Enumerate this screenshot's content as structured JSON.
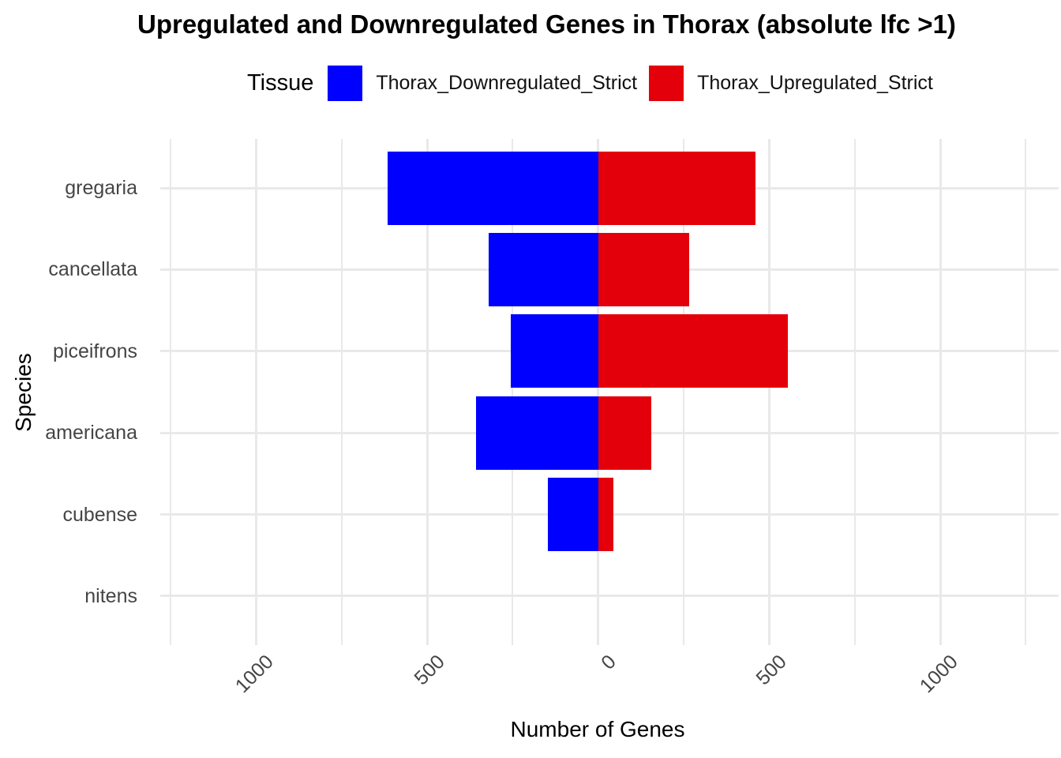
{
  "title": "Upregulated and Downregulated Genes in Thorax (absolute lfc >1)",
  "legend": {
    "title": "Tissue",
    "items": [
      {
        "label": "Thorax_Downregulated_Strict",
        "color": "#0000FF"
      },
      {
        "label": "Thorax_Upregulated_Strict",
        "color": "#E4000B"
      }
    ]
  },
  "chart_data": {
    "type": "bar",
    "orientation": "horizontal-diverging",
    "title": "Upregulated and Downregulated Genes in Thorax (absolute lfc >1)",
    "xlabel": "Number of Genes",
    "ylabel": "Species",
    "categories": [
      "gregaria",
      "cancellata",
      "piceifrons",
      "americana",
      "cubense",
      "nitens"
    ],
    "series": [
      {
        "name": "Thorax_Downregulated_Strict",
        "color": "#0000FF",
        "direction": "left",
        "values": [
          616,
          320,
          256,
          356,
          146,
          0
        ]
      },
      {
        "name": "Thorax_Upregulated_Strict",
        "color": "#E4000B",
        "direction": "right",
        "values": [
          461,
          267,
          554,
          155,
          45,
          0
        ]
      }
    ],
    "x_ticks": [
      -1000,
      -500,
      0,
      500,
      1000
    ],
    "x_tick_labels": [
      "1000",
      "500",
      "0",
      "500",
      "1000"
    ],
    "x_minor_ticks": [
      -1250,
      -750,
      -250,
      250,
      750,
      1250
    ],
    "xlim": [
      -1280,
      1353
    ],
    "grid": true,
    "legend_position": "top",
    "background": "#ffffff",
    "gridline_color": "#E9E9E9"
  }
}
